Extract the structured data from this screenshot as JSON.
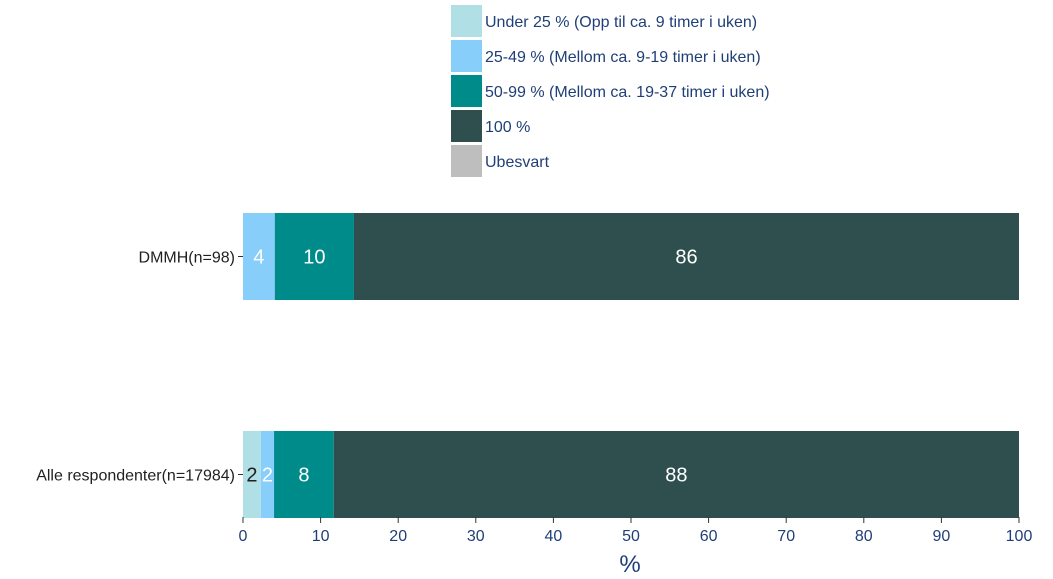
{
  "chart_data": {
    "type": "bar",
    "orientation": "horizontal",
    "stacked": true,
    "categories": [
      "DMMH(n=98)",
      "Alle respondenter(n=17984)"
    ],
    "series": [
      {
        "name": "Under 25 % (Opp til ca. 9 timer i uken)",
        "color": "#b0e0e6",
        "values": [
          0,
          2.3
        ],
        "labels": [
          "",
          "2"
        ],
        "label_color": "#1f1f1f"
      },
      {
        "name": "25-49 % (Mellom ca. 9-19 timer i uken)",
        "color": "#87cefa",
        "values": [
          4.1,
          1.7
        ],
        "labels": [
          "4",
          "2"
        ],
        "label_color": "#ffffff"
      },
      {
        "name": "50-99 % (Mellom ca. 19-37 timer i uken)",
        "color": "#008b8b",
        "values": [
          10.2,
          7.7
        ],
        "labels": [
          "10",
          "8"
        ],
        "label_color": "#ffffff"
      },
      {
        "name": "100 %",
        "color": "#2f4f4f",
        "values": [
          85.7,
          88.3
        ],
        "labels": [
          "86",
          "88"
        ],
        "label_color": "#ffffff"
      },
      {
        "name": "Ubesvart",
        "color": "#bebebe",
        "values": [
          0,
          0
        ],
        "labels": [
          "",
          ""
        ],
        "label_color": "#1f1f1f"
      }
    ],
    "xlabel": "%",
    "xlim": [
      0,
      100
    ],
    "xticks": [
      "0",
      "10",
      "20",
      "30",
      "40",
      "50",
      "60",
      "70",
      "80",
      "90",
      "100"
    ],
    "grid": false,
    "legend_position": "top-center"
  }
}
